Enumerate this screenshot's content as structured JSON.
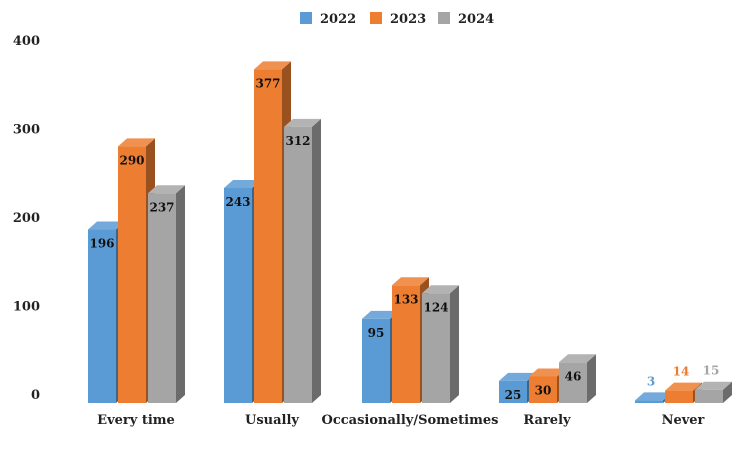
{
  "chart_data": {
    "type": "bar",
    "style": "3d-clustered-column",
    "categories": [
      "Every time",
      "Usually",
      "Occasionally/Sometimes",
      "Rarely",
      "Never"
    ],
    "series": [
      {
        "name": "2022",
        "color": "#5B9BD5",
        "values": [
          196,
          243,
          95,
          25,
          3
        ]
      },
      {
        "name": "2023",
        "color": "#ED7D31",
        "values": [
          290,
          377,
          133,
          30,
          14
        ]
      },
      {
        "name": "2024",
        "color": "#A5A5A5",
        "values": [
          237,
          312,
          124,
          46,
          15
        ]
      }
    ],
    "y_ticks": [
      "0",
      "100",
      "200",
      "300",
      "400"
    ],
    "ylim": [
      0,
      400
    ],
    "title": "",
    "xlabel": "",
    "ylabel": "",
    "grid": false,
    "legend_position": "top-center",
    "data_labels": true
  }
}
